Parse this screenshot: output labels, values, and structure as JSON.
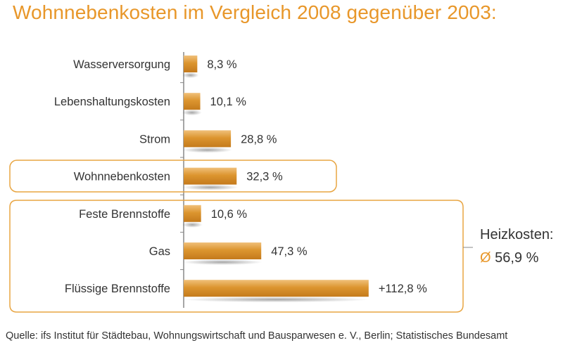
{
  "title": "Wohnnebenkosten im Vergleich 2008 gegenüber 2003:",
  "source": "Quelle: ifs Institut für Städtebau, Wohnungswirtschaft und Bausparwesen e. V., Berlin; Statistisches Bundesamt",
  "heating_group": {
    "label": "Heizkosten:",
    "avg_symbol": "Ø",
    "avg_value": "56,9 %"
  },
  "colors": {
    "accent": "#e8972a",
    "bar": "#d9902c",
    "text": "#333333"
  },
  "chart_data": {
    "type": "bar",
    "orientation": "horizontal",
    "title": "Wohnnebenkosten im Vergleich 2008 gegenüber 2003:",
    "xlabel": "",
    "ylabel": "",
    "grid": false,
    "categories": [
      "Wasserversorgung",
      "Lebenshaltungskosten",
      "Strom",
      "Wohnnebenkosten",
      "Feste Brennstoffe",
      "Gas",
      "Flüssige Brennstoffe"
    ],
    "values": [
      8.3,
      10.1,
      28.8,
      32.3,
      10.6,
      47.3,
      112.8
    ],
    "value_labels": [
      "8,3 %",
      "10,1 %",
      "28,8 %",
      "32,3 %",
      "10,6 %",
      "47,3 %",
      "+112,8 %"
    ],
    "highlighted_categories": [
      "Wohnnebenkosten"
    ],
    "grouped_categories": [
      "Feste Brennstoffe",
      "Gas",
      "Flüssige Brennstoffe"
    ]
  }
}
